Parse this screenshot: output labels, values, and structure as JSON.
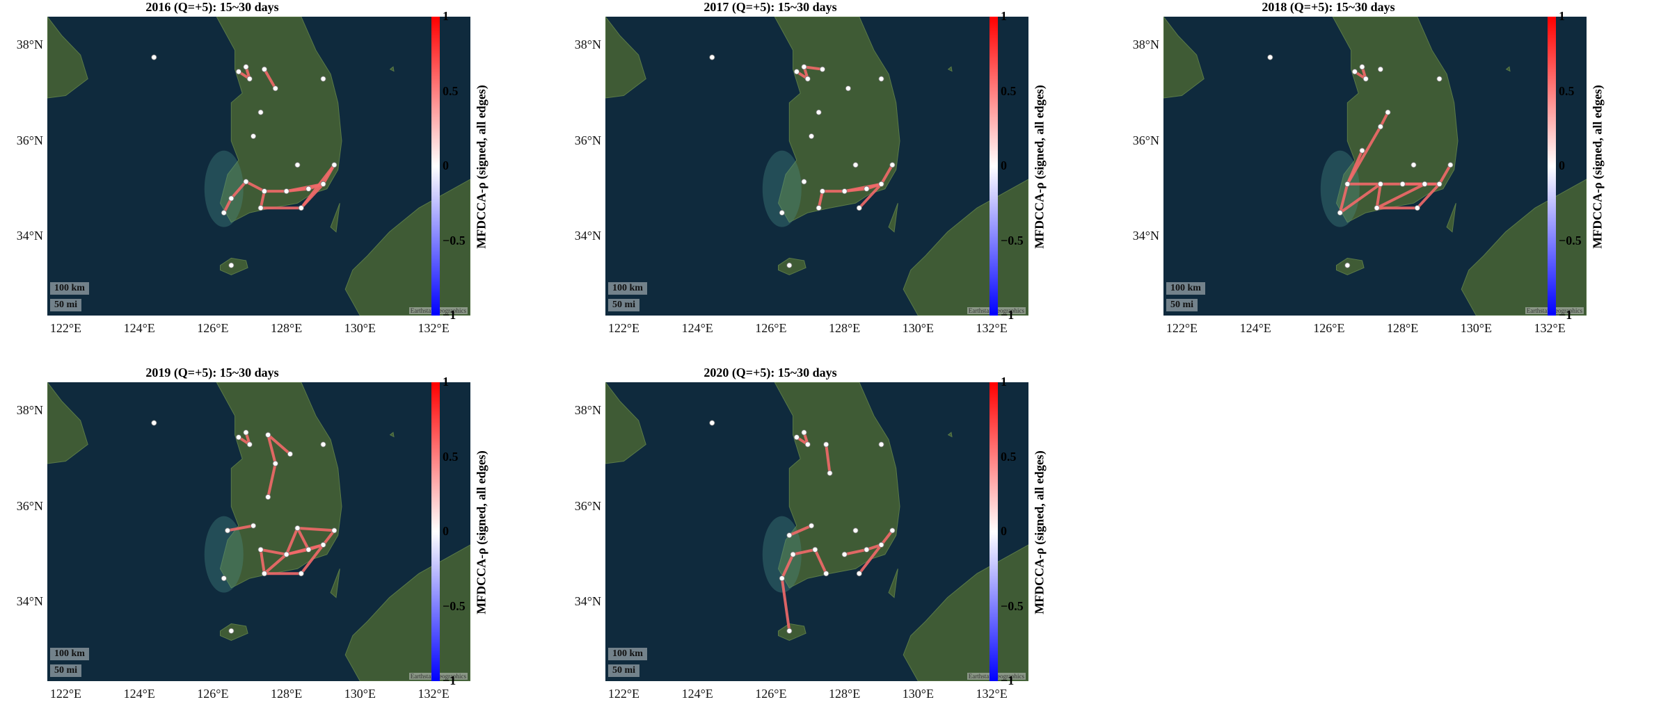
{
  "colorbar": {
    "label": "MFDCCA-ρ (signed, all edges)",
    "ticks": [
      "1",
      "0.5",
      "0",
      "−0.5",
      "−1"
    ],
    "min_color": "#0000ff",
    "mid_color": "#ffffff",
    "max_color": "#ff0000"
  },
  "axes": {
    "lat_labels": [
      "38°N",
      "36°N",
      "34°N"
    ],
    "lon_labels": [
      "122°E",
      "124°E",
      "126°E",
      "128°E",
      "130°E",
      "132°E"
    ]
  },
  "scale_bar": {
    "km": "100 km",
    "mi": "50 mi"
  },
  "attribution": "Earthstar Geographics",
  "colors": {
    "sea": "#0f2a3d",
    "land": "#3f5b35",
    "edge": "#f26a6a",
    "node": "#ffffff"
  },
  "panels": [
    {
      "title": "2016 (Q=+5): 15~30 days"
    },
    {
      "title": "2017 (Q=+5): 15~30 days"
    },
    {
      "title": "2018 (Q=+5): 15~30 days"
    },
    {
      "title": "2019 (Q=+5): 15~30 days"
    },
    {
      "title": "2020 (Q=+5): 15~30 days"
    }
  ],
  "chart_data": [
    {
      "type": "map-network",
      "title": "2016 (Q=+5): 15~30 days",
      "nodes": [
        {
          "lon": 124.4,
          "lat": 37.75
        },
        {
          "lon": 126.9,
          "lat": 37.55
        },
        {
          "lon": 126.7,
          "lat": 37.45
        },
        {
          "lon": 127.0,
          "lat": 37.3
        },
        {
          "lon": 127.4,
          "lat": 37.5
        },
        {
          "lon": 127.7,
          "lat": 37.1
        },
        {
          "lon": 129.0,
          "lat": 37.3
        },
        {
          "lon": 127.3,
          "lat": 36.6
        },
        {
          "lon": 127.1,
          "lat": 36.1
        },
        {
          "lon": 126.9,
          "lat": 35.15
        },
        {
          "lon": 126.5,
          "lat": 34.8
        },
        {
          "lon": 126.3,
          "lat": 34.5
        },
        {
          "lon": 127.4,
          "lat": 34.95
        },
        {
          "lon": 127.3,
          "lat": 34.6
        },
        {
          "lon": 128.0,
          "lat": 34.95
        },
        {
          "lon": 128.4,
          "lat": 34.6
        },
        {
          "lon": 128.6,
          "lat": 35.0
        },
        {
          "lon": 129.0,
          "lat": 35.1
        },
        {
          "lon": 129.3,
          "lat": 35.5
        },
        {
          "lon": 128.3,
          "lat": 35.5
        },
        {
          "lon": 126.5,
          "lat": 33.4
        }
      ],
      "edges": [
        [
          1,
          3
        ],
        [
          2,
          3
        ],
        [
          4,
          5
        ],
        [
          9,
          10
        ],
        [
          10,
          11
        ],
        [
          12,
          13
        ],
        [
          13,
          15
        ],
        [
          12,
          14
        ],
        [
          14,
          16
        ],
        [
          15,
          17
        ],
        [
          16,
          17
        ],
        [
          17,
          18
        ],
        [
          14,
          17
        ],
        [
          15,
          18
        ],
        [
          9,
          12
        ]
      ]
    },
    {
      "type": "map-network",
      "title": "2017 (Q=+5): 15~30 days",
      "nodes": [
        {
          "lon": 124.4,
          "lat": 37.75
        },
        {
          "lon": 126.9,
          "lat": 37.55
        },
        {
          "lon": 126.7,
          "lat": 37.45
        },
        {
          "lon": 127.0,
          "lat": 37.3
        },
        {
          "lon": 127.4,
          "lat": 37.5
        },
        {
          "lon": 128.1,
          "lat": 37.1
        },
        {
          "lon": 129.0,
          "lat": 37.3
        },
        {
          "lon": 127.3,
          "lat": 36.6
        },
        {
          "lon": 127.1,
          "lat": 36.1
        },
        {
          "lon": 126.9,
          "lat": 35.15
        },
        {
          "lon": 126.3,
          "lat": 34.5
        },
        {
          "lon": 127.4,
          "lat": 34.95
        },
        {
          "lon": 127.3,
          "lat": 34.6
        },
        {
          "lon": 128.0,
          "lat": 34.95
        },
        {
          "lon": 128.4,
          "lat": 34.6
        },
        {
          "lon": 128.6,
          "lat": 35.0
        },
        {
          "lon": 129.0,
          "lat": 35.1
        },
        {
          "lon": 129.3,
          "lat": 35.5
        },
        {
          "lon": 128.3,
          "lat": 35.5
        },
        {
          "lon": 126.5,
          "lat": 33.4
        }
      ],
      "edges": [
        [
          1,
          3
        ],
        [
          2,
          3
        ],
        [
          1,
          4
        ],
        [
          11,
          12
        ],
        [
          11,
          13
        ],
        [
          13,
          15
        ],
        [
          14,
          16
        ],
        [
          15,
          16
        ],
        [
          16,
          17
        ],
        [
          13,
          16
        ]
      ]
    },
    {
      "type": "map-network",
      "title": "2018 (Q=+5): 15~30 days",
      "nodes": [
        {
          "lon": 124.4,
          "lat": 37.75
        },
        {
          "lon": 126.9,
          "lat": 37.55
        },
        {
          "lon": 126.7,
          "lat": 37.45
        },
        {
          "lon": 127.0,
          "lat": 37.3
        },
        {
          "lon": 127.4,
          "lat": 37.5
        },
        {
          "lon": 129.0,
          "lat": 37.3
        },
        {
          "lon": 127.6,
          "lat": 36.6
        },
        {
          "lon": 127.4,
          "lat": 36.3
        },
        {
          "lon": 126.9,
          "lat": 35.8
        },
        {
          "lon": 126.5,
          "lat": 35.1
        },
        {
          "lon": 126.3,
          "lat": 34.5
        },
        {
          "lon": 127.3,
          "lat": 34.6
        },
        {
          "lon": 127.4,
          "lat": 35.1
        },
        {
          "lon": 128.0,
          "lat": 35.1
        },
        {
          "lon": 128.4,
          "lat": 34.6
        },
        {
          "lon": 128.6,
          "lat": 35.1
        },
        {
          "lon": 129.0,
          "lat": 35.1
        },
        {
          "lon": 129.3,
          "lat": 35.5
        },
        {
          "lon": 128.3,
          "lat": 35.5
        },
        {
          "lon": 126.5,
          "lat": 33.4
        }
      ],
      "edges": [
        [
          1,
          3
        ],
        [
          2,
          3
        ],
        [
          6,
          7
        ],
        [
          7,
          9
        ],
        [
          9,
          10
        ],
        [
          9,
          12
        ],
        [
          10,
          12
        ],
        [
          11,
          12
        ],
        [
          12,
          13
        ],
        [
          11,
          15
        ],
        [
          13,
          15
        ],
        [
          14,
          16
        ],
        [
          15,
          16
        ],
        [
          16,
          17
        ],
        [
          13,
          16
        ],
        [
          11,
          14
        ],
        [
          8,
          9
        ]
      ]
    },
    {
      "type": "map-network",
      "title": "2019 (Q=+5): 15~30 days",
      "nodes": [
        {
          "lon": 124.4,
          "lat": 37.75
        },
        {
          "lon": 126.9,
          "lat": 37.55
        },
        {
          "lon": 126.7,
          "lat": 37.45
        },
        {
          "lon": 127.0,
          "lat": 37.3
        },
        {
          "lon": 127.5,
          "lat": 37.5
        },
        {
          "lon": 128.1,
          "lat": 37.1
        },
        {
          "lon": 129.0,
          "lat": 37.3
        },
        {
          "lon": 127.7,
          "lat": 36.9
        },
        {
          "lon": 127.5,
          "lat": 36.2
        },
        {
          "lon": 127.1,
          "lat": 35.6
        },
        {
          "lon": 126.4,
          "lat": 35.5
        },
        {
          "lon": 127.3,
          "lat": 35.1
        },
        {
          "lon": 127.4,
          "lat": 34.6
        },
        {
          "lon": 128.0,
          "lat": 35.0
        },
        {
          "lon": 128.4,
          "lat": 34.6
        },
        {
          "lon": 128.6,
          "lat": 35.1
        },
        {
          "lon": 129.0,
          "lat": 35.2
        },
        {
          "lon": 129.3,
          "lat": 35.5
        },
        {
          "lon": 128.3,
          "lat": 35.55
        },
        {
          "lon": 126.3,
          "lat": 34.5
        },
        {
          "lon": 126.5,
          "lat": 33.4
        }
      ],
      "edges": [
        [
          1,
          3
        ],
        [
          2,
          3
        ],
        [
          4,
          5
        ],
        [
          4,
          7
        ],
        [
          7,
          8
        ],
        [
          9,
          10
        ],
        [
          11,
          12
        ],
        [
          12,
          13
        ],
        [
          11,
          13
        ],
        [
          13,
          15
        ],
        [
          14,
          16
        ],
        [
          15,
          16
        ],
        [
          16,
          17
        ],
        [
          13,
          16
        ],
        [
          12,
          14
        ],
        [
          15,
          18
        ],
        [
          18,
          17
        ],
        [
          13,
          18
        ]
      ]
    },
    {
      "type": "map-network",
      "title": "2020 (Q=+5): 15~30 days",
      "nodes": [
        {
          "lon": 124.4,
          "lat": 37.75
        },
        {
          "lon": 126.9,
          "lat": 37.55
        },
        {
          "lon": 126.7,
          "lat": 37.45
        },
        {
          "lon": 127.0,
          "lat": 37.3
        },
        {
          "lon": 127.5,
          "lat": 37.3
        },
        {
          "lon": 127.6,
          "lat": 36.7
        },
        {
          "lon": 129.0,
          "lat": 37.3
        },
        {
          "lon": 127.1,
          "lat": 35.6
        },
        {
          "lon": 126.5,
          "lat": 35.4
        },
        {
          "lon": 126.6,
          "lat": 35.0
        },
        {
          "lon": 127.2,
          "lat": 35.1
        },
        {
          "lon": 127.5,
          "lat": 34.6
        },
        {
          "lon": 128.0,
          "lat": 35.0
        },
        {
          "lon": 128.4,
          "lat": 34.6
        },
        {
          "lon": 128.6,
          "lat": 35.1
        },
        {
          "lon": 129.0,
          "lat": 35.2
        },
        {
          "lon": 129.3,
          "lat": 35.5
        },
        {
          "lon": 128.3,
          "lat": 35.5
        },
        {
          "lon": 126.3,
          "lat": 34.5
        },
        {
          "lon": 126.5,
          "lat": 33.4
        }
      ],
      "edges": [
        [
          1,
          3
        ],
        [
          2,
          3
        ],
        [
          4,
          5
        ],
        [
          7,
          8
        ],
        [
          9,
          10
        ],
        [
          10,
          11
        ],
        [
          12,
          14
        ],
        [
          13,
          15
        ],
        [
          14,
          15
        ],
        [
          15,
          16
        ],
        [
          18,
          19
        ],
        [
          9,
          18
        ]
      ]
    }
  ]
}
